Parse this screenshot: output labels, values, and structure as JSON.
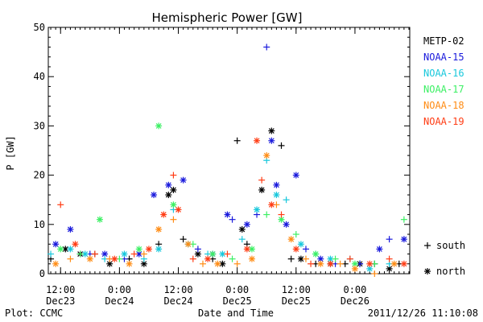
{
  "footer": {
    "plot_label": "Plot: CCMC",
    "timestamp": "2011/12/26 11:10:08"
  },
  "chart_data": {
    "type": "scatter",
    "title": "Hemispheric Power [GW]",
    "xlabel": "Date and Time",
    "ylabel": "P [GW]",
    "ylim": [
      0,
      50
    ],
    "y_ticks": [
      "0",
      "10",
      "20",
      "30",
      "40",
      "50"
    ],
    "x_ticks": [
      {
        "t": "2011-12-23 12:00",
        "time": "12:00",
        "date": "Dec23"
      },
      {
        "t": "2011-12-24 00:00",
        "time": "0:00",
        "date": "Dec24"
      },
      {
        "t": "2011-12-24 12:00",
        "time": "12:00",
        "date": "Dec24"
      },
      {
        "t": "2011-12-25 00:00",
        "time": "0:00",
        "date": "Dec25"
      },
      {
        "t": "2011-12-25 12:00",
        "time": "12:00",
        "date": "Dec25"
      },
      {
        "t": "2011-12-26 00:00",
        "time": "0:00",
        "date": "Dec26"
      }
    ],
    "xlim": [
      "2011-12-23 09:30",
      "2011-12-26 11:10"
    ],
    "grid": false,
    "legend_position": "right",
    "markers": {
      "south": "+",
      "north": "*"
    },
    "marker_legend": {
      "south": "south",
      "north": "north"
    },
    "series": [
      {
        "name": "METP-02",
        "color": "#000000",
        "points": [
          {
            "t": "2011-12-23 10:00",
            "y": 3,
            "h": "south"
          },
          {
            "t": "2011-12-23 13:00",
            "y": 5,
            "h": "north"
          },
          {
            "t": "2011-12-23 16:00",
            "y": 4,
            "h": "north"
          },
          {
            "t": "2011-12-23 19:00",
            "y": 4,
            "h": "south"
          },
          {
            "t": "2011-12-23 22:00",
            "y": 2,
            "h": "north"
          },
          {
            "t": "2011-12-24 02:00",
            "y": 3,
            "h": "south"
          },
          {
            "t": "2011-12-24 05:00",
            "y": 2,
            "h": "north"
          },
          {
            "t": "2011-12-24 08:00",
            "y": 6,
            "h": "south"
          },
          {
            "t": "2011-12-24 10:00",
            "y": 16,
            "h": "north"
          },
          {
            "t": "2011-12-24 11:00",
            "y": 17,
            "h": "north"
          },
          {
            "t": "2011-12-24 13:00",
            "y": 7,
            "h": "south"
          },
          {
            "t": "2011-12-24 16:00",
            "y": 4,
            "h": "north"
          },
          {
            "t": "2011-12-24 19:00",
            "y": 3,
            "h": "south"
          },
          {
            "t": "2011-12-24 21:00",
            "y": 2,
            "h": "north"
          },
          {
            "t": "2011-12-25 00:00",
            "y": 27,
            "h": "south"
          },
          {
            "t": "2011-12-25 01:00",
            "y": 9,
            "h": "north"
          },
          {
            "t": "2011-12-25 02:00",
            "y": 6,
            "h": "south"
          },
          {
            "t": "2011-12-25 05:00",
            "y": 17,
            "h": "north"
          },
          {
            "t": "2011-12-25 07:00",
            "y": 29,
            "h": "north"
          },
          {
            "t": "2011-12-25 09:00",
            "y": 26,
            "h": "south"
          },
          {
            "t": "2011-12-25 11:00",
            "y": 3,
            "h": "south"
          },
          {
            "t": "2011-12-25 13:00",
            "y": 3,
            "h": "north"
          },
          {
            "t": "2011-12-25 16:00",
            "y": 2,
            "h": "south"
          },
          {
            "t": "2011-12-25 19:00",
            "y": 2,
            "h": "north"
          },
          {
            "t": "2011-12-25 22:00",
            "y": 2,
            "h": "south"
          },
          {
            "t": "2011-12-26 01:00",
            "y": 2,
            "h": "north"
          },
          {
            "t": "2011-12-26 04:00",
            "y": 2,
            "h": "south"
          },
          {
            "t": "2011-12-26 07:00",
            "y": 1,
            "h": "north"
          },
          {
            "t": "2011-12-26 09:00",
            "y": 2,
            "h": "south"
          }
        ]
      },
      {
        "name": "NOAA-15",
        "color": "#1a1adc",
        "points": [
          {
            "t": "2011-12-23 11:00",
            "y": 6,
            "h": "north"
          },
          {
            "t": "2011-12-23 14:00",
            "y": 9,
            "h": "north"
          },
          {
            "t": "2011-12-23 18:00",
            "y": 4,
            "h": "south"
          },
          {
            "t": "2011-12-23 21:00",
            "y": 4,
            "h": "north"
          },
          {
            "t": "2011-12-24 01:00",
            "y": 3,
            "h": "south"
          },
          {
            "t": "2011-12-24 04:00",
            "y": 4,
            "h": "north"
          },
          {
            "t": "2011-12-24 07:00",
            "y": 16,
            "h": "north"
          },
          {
            "t": "2011-12-24 10:00",
            "y": 18,
            "h": "north"
          },
          {
            "t": "2011-12-24 13:00",
            "y": 19,
            "h": "north"
          },
          {
            "t": "2011-12-24 16:00",
            "y": 5,
            "h": "south"
          },
          {
            "t": "2011-12-24 19:00",
            "y": 4,
            "h": "north"
          },
          {
            "t": "2011-12-24 22:00",
            "y": 12,
            "h": "north"
          },
          {
            "t": "2011-12-24 23:00",
            "y": 11,
            "h": "south"
          },
          {
            "t": "2011-12-25 02:00",
            "y": 10,
            "h": "north"
          },
          {
            "t": "2011-12-25 04:00",
            "y": 12,
            "h": "south"
          },
          {
            "t": "2011-12-25 06:00",
            "y": 46,
            "h": "south"
          },
          {
            "t": "2011-12-25 07:00",
            "y": 27,
            "h": "north"
          },
          {
            "t": "2011-12-25 08:00",
            "y": 18,
            "h": "north"
          },
          {
            "t": "2011-12-25 10:00",
            "y": 10,
            "h": "north"
          },
          {
            "t": "2011-12-25 12:00",
            "y": 20,
            "h": "north"
          },
          {
            "t": "2011-12-25 14:00",
            "y": 5,
            "h": "south"
          },
          {
            "t": "2011-12-25 17:00",
            "y": 3,
            "h": "north"
          },
          {
            "t": "2011-12-25 20:00",
            "y": 2,
            "h": "south"
          },
          {
            "t": "2011-12-26 01:00",
            "y": 2,
            "h": "south"
          },
          {
            "t": "2011-12-26 05:00",
            "y": 5,
            "h": "north"
          },
          {
            "t": "2011-12-26 07:00",
            "y": 7,
            "h": "south"
          },
          {
            "t": "2011-12-26 10:00",
            "y": 7,
            "h": "north"
          }
        ]
      },
      {
        "name": "NOAA-16",
        "color": "#19c8dc",
        "points": [
          {
            "t": "2011-12-23 10:00",
            "y": 4,
            "h": "south"
          },
          {
            "t": "2011-12-23 14:00",
            "y": 5,
            "h": "north"
          },
          {
            "t": "2011-12-23 17:00",
            "y": 4,
            "h": "north"
          },
          {
            "t": "2011-12-23 21:00",
            "y": 3,
            "h": "south"
          },
          {
            "t": "2011-12-24 01:00",
            "y": 4,
            "h": "north"
          },
          {
            "t": "2011-12-24 05:00",
            "y": 3,
            "h": "south"
          },
          {
            "t": "2011-12-24 08:00",
            "y": 5,
            "h": "north"
          },
          {
            "t": "2011-12-24 11:00",
            "y": 13,
            "h": "south"
          },
          {
            "t": "2011-12-24 14:00",
            "y": 6,
            "h": "north"
          },
          {
            "t": "2011-12-24 18:00",
            "y": 4,
            "h": "south"
          },
          {
            "t": "2011-12-24 21:00",
            "y": 4,
            "h": "north"
          },
          {
            "t": "2011-12-25 01:00",
            "y": 7,
            "h": "south"
          },
          {
            "t": "2011-12-25 04:00",
            "y": 13,
            "h": "north"
          },
          {
            "t": "2011-12-25 06:00",
            "y": 23,
            "h": "south"
          },
          {
            "t": "2011-12-25 08:00",
            "y": 16,
            "h": "north"
          },
          {
            "t": "2011-12-25 10:00",
            "y": 15,
            "h": "south"
          },
          {
            "t": "2011-12-25 13:00",
            "y": 6,
            "h": "north"
          },
          {
            "t": "2011-12-25 16:00",
            "y": 4,
            "h": "south"
          },
          {
            "t": "2011-12-25 19:00",
            "y": 3,
            "h": "north"
          },
          {
            "t": "2011-12-25 23:00",
            "y": 3,
            "h": "south"
          },
          {
            "t": "2011-12-26 03:00",
            "y": 1,
            "h": "north"
          },
          {
            "t": "2011-12-26 07:00",
            "y": 2,
            "h": "south"
          }
        ]
      },
      {
        "name": "NOAA-17",
        "color": "#3cf064",
        "points": [
          {
            "t": "2011-12-23 12:00",
            "y": 5,
            "h": "north"
          },
          {
            "t": "2011-12-23 16:00",
            "y": 4,
            "h": "south"
          },
          {
            "t": "2011-12-23 20:00",
            "y": 11,
            "h": "north"
          },
          {
            "t": "2011-12-24 00:00",
            "y": 3,
            "h": "south"
          },
          {
            "t": "2011-12-24 04:00",
            "y": 5,
            "h": "north"
          },
          {
            "t": "2011-12-24 08:00",
            "y": 30,
            "h": "north"
          },
          {
            "t": "2011-12-24 11:00",
            "y": 14,
            "h": "north"
          },
          {
            "t": "2011-12-24 15:00",
            "y": 6,
            "h": "south"
          },
          {
            "t": "2011-12-24 19:00",
            "y": 4,
            "h": "north"
          },
          {
            "t": "2011-12-24 23:00",
            "y": 3,
            "h": "south"
          },
          {
            "t": "2011-12-25 03:00",
            "y": 5,
            "h": "north"
          },
          {
            "t": "2011-12-25 06:00",
            "y": 12,
            "h": "south"
          },
          {
            "t": "2011-12-25 09:00",
            "y": 11,
            "h": "north"
          },
          {
            "t": "2011-12-25 12:00",
            "y": 8,
            "h": "south"
          },
          {
            "t": "2011-12-25 16:00",
            "y": 4,
            "h": "north"
          },
          {
            "t": "2011-12-25 20:00",
            "y": 3,
            "h": "south"
          },
          {
            "t": "2011-12-26 00:00",
            "y": 2,
            "h": "north"
          },
          {
            "t": "2011-12-26 04:00",
            "y": 2,
            "h": "south"
          },
          {
            "t": "2011-12-26 10:00",
            "y": 11,
            "h": "south"
          }
        ]
      },
      {
        "name": "NOAA-18",
        "color": "#ff8c14",
        "points": [
          {
            "t": "2011-12-23 11:00",
            "y": 2,
            "h": "north"
          },
          {
            "t": "2011-12-23 14:00",
            "y": 3,
            "h": "south"
          },
          {
            "t": "2011-12-23 18:00",
            "y": 3,
            "h": "north"
          },
          {
            "t": "2011-12-23 22:00",
            "y": 3,
            "h": "south"
          },
          {
            "t": "2011-12-24 02:00",
            "y": 2,
            "h": "north"
          },
          {
            "t": "2011-12-24 05:00",
            "y": 4,
            "h": "south"
          },
          {
            "t": "2011-12-24 08:00",
            "y": 9,
            "h": "north"
          },
          {
            "t": "2011-12-24 11:00",
            "y": 11,
            "h": "south"
          },
          {
            "t": "2011-12-24 14:00",
            "y": 6,
            "h": "north"
          },
          {
            "t": "2011-12-24 17:00",
            "y": 2,
            "h": "south"
          },
          {
            "t": "2011-12-24 20:00",
            "y": 2,
            "h": "north"
          },
          {
            "t": "2011-12-25 00:00",
            "y": 2,
            "h": "south"
          },
          {
            "t": "2011-12-25 03:00",
            "y": 3,
            "h": "north"
          },
          {
            "t": "2011-12-25 06:00",
            "y": 24,
            "h": "north"
          },
          {
            "t": "2011-12-25 08:00",
            "y": 14,
            "h": "south"
          },
          {
            "t": "2011-12-25 11:00",
            "y": 7,
            "h": "north"
          },
          {
            "t": "2011-12-25 14:00",
            "y": 3,
            "h": "south"
          },
          {
            "t": "2011-12-25 17:00",
            "y": 2,
            "h": "north"
          },
          {
            "t": "2011-12-25 21:00",
            "y": 2,
            "h": "south"
          },
          {
            "t": "2011-12-26 00:00",
            "y": 1,
            "h": "north"
          },
          {
            "t": "2011-12-26 04:00",
            "y": 0,
            "h": "south"
          },
          {
            "t": "2011-12-26 08:00",
            "y": 2,
            "h": "north"
          }
        ]
      },
      {
        "name": "NOAA-19",
        "color": "#ff3c14",
        "points": [
          {
            "t": "2011-12-23 12:00",
            "y": 14,
            "h": "south"
          },
          {
            "t": "2011-12-23 15:00",
            "y": 6,
            "h": "north"
          },
          {
            "t": "2011-12-23 19:00",
            "y": 4,
            "h": "south"
          },
          {
            "t": "2011-12-23 23:00",
            "y": 3,
            "h": "north"
          },
          {
            "t": "2011-12-24 03:00",
            "y": 4,
            "h": "south"
          },
          {
            "t": "2011-12-24 06:00",
            "y": 5,
            "h": "north"
          },
          {
            "t": "2011-12-24 09:00",
            "y": 12,
            "h": "north"
          },
          {
            "t": "2011-12-24 11:00",
            "y": 20,
            "h": "south"
          },
          {
            "t": "2011-12-24 12:00",
            "y": 13,
            "h": "north"
          },
          {
            "t": "2011-12-24 15:00",
            "y": 3,
            "h": "south"
          },
          {
            "t": "2011-12-24 18:00",
            "y": 3,
            "h": "north"
          },
          {
            "t": "2011-12-24 22:00",
            "y": 4,
            "h": "south"
          },
          {
            "t": "2011-12-25 02:00",
            "y": 5,
            "h": "north"
          },
          {
            "t": "2011-12-25 04:00",
            "y": 27,
            "h": "north"
          },
          {
            "t": "2011-12-25 05:00",
            "y": 19,
            "h": "south"
          },
          {
            "t": "2011-12-25 07:00",
            "y": 14,
            "h": "north"
          },
          {
            "t": "2011-12-25 09:00",
            "y": 12,
            "h": "south"
          },
          {
            "t": "2011-12-25 12:00",
            "y": 5,
            "h": "north"
          },
          {
            "t": "2011-12-25 15:00",
            "y": 2,
            "h": "south"
          },
          {
            "t": "2011-12-25 19:00",
            "y": 2,
            "h": "north"
          },
          {
            "t": "2011-12-25 23:00",
            "y": 3,
            "h": "south"
          },
          {
            "t": "2011-12-26 03:00",
            "y": 2,
            "h": "north"
          },
          {
            "t": "2011-12-26 07:00",
            "y": 3,
            "h": "south"
          },
          {
            "t": "2011-12-26 10:00",
            "y": 2,
            "h": "north"
          }
        ]
      }
    ]
  }
}
